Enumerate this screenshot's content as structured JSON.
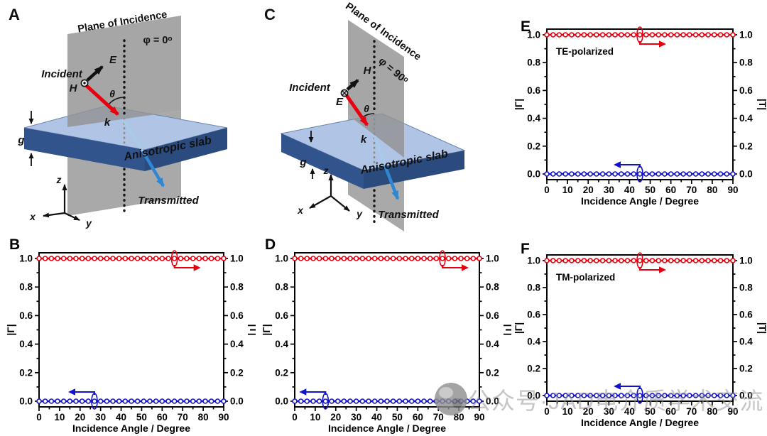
{
  "panels": {
    "A": {
      "letter": "A",
      "plane_label": "Plane of Incidence",
      "phi_label": "φ = 0ᵒ",
      "incident_label": "Incident",
      "field_e": "E",
      "field_h": "H",
      "wavevector": "k",
      "thickness": "g",
      "angle": "θ",
      "slab_label": "Anisotropic slab",
      "transmitted_label": "Transmitted",
      "ax_x": "x",
      "ax_y": "y",
      "ax_z": "z"
    },
    "C": {
      "letter": "C",
      "plane_label": "Plane of Incidence",
      "phi_label": "φ = 90ᵒ",
      "incident_label": "Incident",
      "field_e": "E",
      "field_h": "H",
      "wavevector": "k",
      "thickness": "g",
      "angle": "θ",
      "slab_label": "Anisotropic slab",
      "transmitted_label": "Transmitted",
      "ax_x": "x",
      "ax_y": "y",
      "ax_z": "z"
    }
  },
  "colors": {
    "plane_gray": "#a9a9a9",
    "slab_top": "#b0c4e6",
    "slab_side_left": "#32548c",
    "slab_side_right": "#2b4a7e",
    "slab_label_yellow": "#ffff00",
    "incident_arrow_red": "#e8000f",
    "transmitted_arrow_blue": "#2f87d2",
    "reflection_series_blue": "#1212cc",
    "transmission_series_red": "#e8000f"
  },
  "watermark": {
    "logo": "gray-badge-logo",
    "text": "公众号·JAD电介质学术交流"
  },
  "chart_data": [
    {
      "id": "B",
      "panel_label": "B",
      "type": "line",
      "corner_label": "",
      "xlabel": "Incidence Angle / Degree",
      "ylabel_left": "|Γ|",
      "ylabel_right": "|T|",
      "xlim": [
        0,
        90
      ],
      "ylim": [
        0,
        1
      ],
      "x_tick_step": 10,
      "x_minor_step": 5,
      "y_tick_step": 0.2,
      "y_minor_step": 0.1,
      "grid": false,
      "series": [
        {
          "name": "|T|",
          "axis": "right",
          "color": "#e8000f",
          "marker": "open-circle",
          "x_start": 0,
          "x_end": 90,
          "x_step": 3,
          "constant_value": 1.0,
          "callout": {
            "x": 66,
            "direction": "right"
          }
        },
        {
          "name": "|Γ|",
          "axis": "left",
          "color": "#1212cc",
          "marker": "open-circle",
          "x_start": 0,
          "x_end": 90,
          "x_step": 3,
          "constant_value": 0.0,
          "callout": {
            "x": 27,
            "direction": "left"
          }
        }
      ]
    },
    {
      "id": "D",
      "panel_label": "D",
      "type": "line",
      "corner_label": "",
      "xlabel": "Incidence Angle / Degree",
      "ylabel_left": "|Γ|",
      "ylabel_right": "|T|",
      "xlim": [
        0,
        90
      ],
      "ylim": [
        0,
        1
      ],
      "x_tick_step": 10,
      "x_minor_step": 5,
      "y_tick_step": 0.2,
      "y_minor_step": 0.1,
      "grid": false,
      "series": [
        {
          "name": "|T|",
          "axis": "right",
          "color": "#e8000f",
          "marker": "open-circle",
          "x_start": 0,
          "x_end": 90,
          "x_step": 3,
          "constant_value": 1.0,
          "callout": {
            "x": 72,
            "direction": "right"
          }
        },
        {
          "name": "|Γ|",
          "axis": "left",
          "color": "#1212cc",
          "marker": "open-circle",
          "x_start": 0,
          "x_end": 90,
          "x_step": 3,
          "constant_value": 0.0,
          "callout": {
            "x": 15,
            "direction": "left"
          }
        }
      ]
    },
    {
      "id": "E",
      "panel_label": "E",
      "type": "line",
      "corner_label": "TE-polarized",
      "xlabel": "Incidence Angle / Degree",
      "ylabel_left": "|Γ|",
      "ylabel_right": "|T|",
      "xlim": [
        0,
        90
      ],
      "ylim": [
        0,
        1
      ],
      "x_tick_step": 10,
      "x_minor_step": 5,
      "y_tick_step": 0.2,
      "y_minor_step": 0.1,
      "grid": false,
      "series": [
        {
          "name": "|T|",
          "axis": "right",
          "color": "#e8000f",
          "marker": "open-circle",
          "x_start": 0,
          "x_end": 90,
          "x_step": 3,
          "constant_value": 1.0,
          "callout": {
            "x": 45,
            "direction": "right"
          }
        },
        {
          "name": "|Γ|",
          "axis": "left",
          "color": "#1212cc",
          "marker": "open-circle",
          "x_start": 0,
          "x_end": 90,
          "x_step": 3,
          "constant_value": 0.0,
          "callout": {
            "x": 45,
            "direction": "left"
          }
        }
      ]
    },
    {
      "id": "F",
      "panel_label": "F",
      "type": "line",
      "corner_label": "TM-polarized",
      "xlabel": "Incidence Angle / Degree",
      "ylabel_left": "|Γ|",
      "ylabel_right": "|T|",
      "xlim": [
        0,
        90
      ],
      "ylim": [
        0,
        1
      ],
      "x_tick_step": 10,
      "x_minor_step": 5,
      "y_tick_step": 0.2,
      "y_minor_step": 0.1,
      "grid": false,
      "series": [
        {
          "name": "|T|",
          "axis": "right",
          "color": "#e8000f",
          "marker": "open-circle",
          "x_start": 0,
          "x_end": 90,
          "x_step": 3,
          "constant_value": 1.0,
          "callout": {
            "x": 45,
            "direction": "right"
          }
        },
        {
          "name": "|Γ|",
          "axis": "left",
          "color": "#1212cc",
          "marker": "open-circle",
          "x_start": 0,
          "x_end": 90,
          "x_step": 3,
          "constant_value": 0.0,
          "callout": {
            "x": 45,
            "direction": "left"
          }
        }
      ]
    }
  ]
}
